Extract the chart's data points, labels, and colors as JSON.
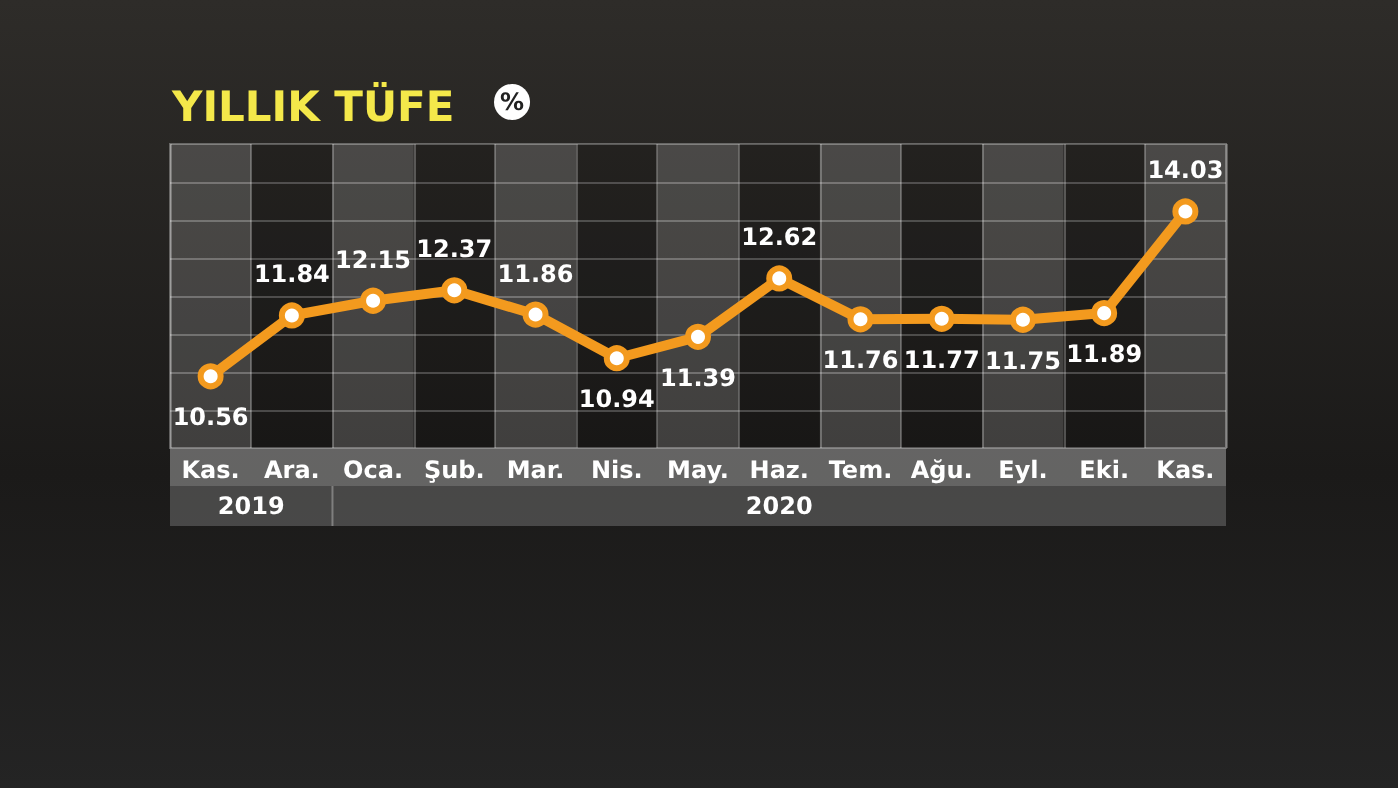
{
  "chart_data": {
    "type": "line",
    "title": "YILLIK TÜFE",
    "subtitle": "%",
    "categories": [
      "Kas.",
      "Ara.",
      "Oca.",
      "Şub.",
      "Mar.",
      "Nis.",
      "May.",
      "Haz.",
      "Tem.",
      "Ağu.",
      "Eyl.",
      "Eki.",
      "Kas."
    ],
    "series": [
      {
        "color": "#f39a1e",
        "values": [
          10.56,
          11.84,
          12.15,
          12.37,
          11.86,
          10.94,
          11.39,
          12.62,
          11.76,
          11.77,
          11.75,
          11.89,
          14.03
        ]
      }
    ],
    "annotations": [
      "2019",
      "2020"
    ],
    "ylim": [
      9.05,
      15.45
    ],
    "yticks": [
      {
        "value": 9.85,
        "label": null
      },
      {
        "value": 10.65,
        "label": null
      },
      {
        "value": 11.45,
        "label": null
      },
      {
        "value": 12.25,
        "label": null
      },
      {
        "value": 13.05,
        "label": null
      },
      {
        "value": 13.85,
        "label": null
      },
      {
        "value": 14.65,
        "label": null
      }
    ],
    "tick_labels": "x",
    "data_labels": true,
    "grid": true,
    "marker": "circle",
    "line_style": "solid"
  }
}
